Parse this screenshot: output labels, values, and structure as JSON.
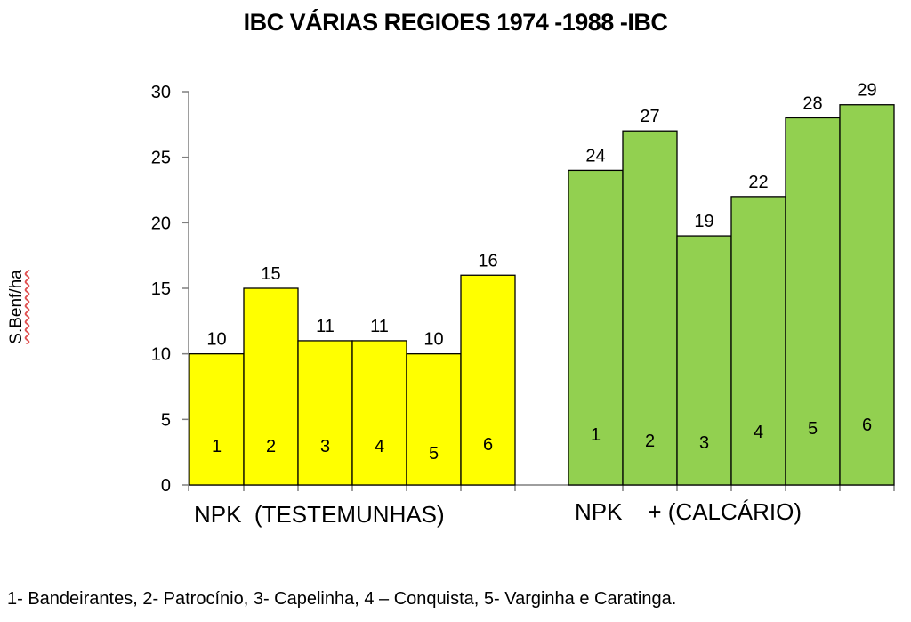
{
  "title": "IBC VÁRIAS REGIOES 1974 -1988 -IBC",
  "footnote": "1- Bandeirantes, 2- Patrocínio, 3- Capelinha, 4 – Conquista, 5- Varginha e Caratinga.",
  "chart_data": {
    "type": "bar",
    "title": "IBC VÁRIAS REGIOES 1974 -1988 -IBC",
    "xlabel": "",
    "ylabel": "S.Benf/ha",
    "ylim": [
      0,
      30
    ],
    "yticks": [
      0,
      5,
      10,
      15,
      20,
      25,
      30
    ],
    "grid": false,
    "legend": "none",
    "groups": [
      {
        "label": "NPK  (TESTEMUNHAS)",
        "color": "#ffff00",
        "categories": [
          "1",
          "2",
          "3",
          "4",
          "5",
          "6"
        ],
        "values": [
          10,
          15,
          11,
          11,
          10,
          16
        ]
      },
      {
        "label": "NPK    + (CALCÁRIO)",
        "color": "#92d050",
        "categories": [
          "1",
          "2",
          "3",
          "4",
          "5",
          "6"
        ],
        "values": [
          24,
          27,
          19,
          22,
          28,
          29
        ]
      }
    ]
  }
}
